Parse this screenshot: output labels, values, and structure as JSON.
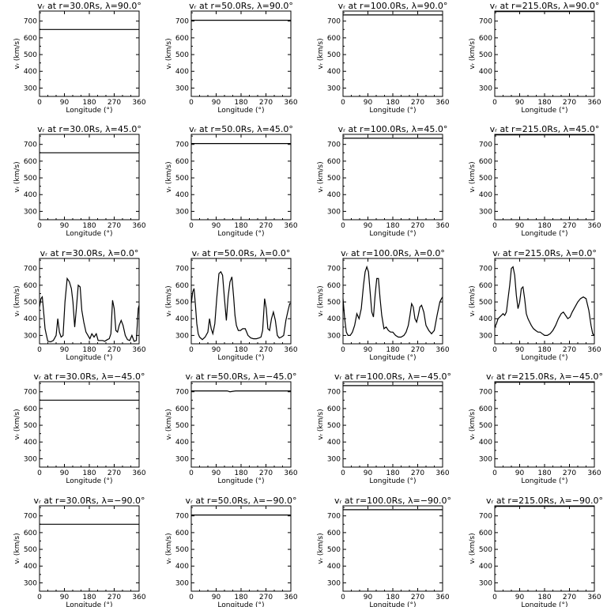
{
  "figure": {
    "background": "#ffffff",
    "line_color": "#000000"
  },
  "chart_data": [
    {
      "type": "line",
      "title": "vᵣ at r=30.0Rs, λ=90.0°",
      "xlabel": "Longitude (°)",
      "ylabel": "vᵣ (km/s)",
      "xlim": [
        0,
        360
      ],
      "ylim": [
        250,
        760
      ],
      "x_ticks": [
        "0",
        "90",
        "180",
        "270",
        "360"
      ],
      "y_ticks": [
        "300",
        "400",
        "500",
        "600",
        "700"
      ],
      "series": [
        {
          "x": [
            0,
            360
          ],
          "y": [
            650,
            650
          ]
        }
      ]
    },
    {
      "type": "line",
      "title": "vᵣ at r=50.0Rs, λ=90.0°",
      "xlabel": "Longitude (°)",
      "ylabel": "vᵣ (km/s)",
      "xlim": [
        0,
        360
      ],
      "ylim": [
        250,
        760
      ],
      "x_ticks": [
        "0",
        "90",
        "180",
        "270",
        "360"
      ],
      "y_ticks": [
        "300",
        "400",
        "500",
        "600",
        "700"
      ],
      "series": [
        {
          "x": [
            0,
            360
          ],
          "y": [
            705,
            705
          ]
        }
      ]
    },
    {
      "type": "line",
      "title": "vᵣ at r=100.0Rs, λ=90.0°",
      "xlabel": "Longitude (°)",
      "ylabel": "vᵣ (km/s)",
      "xlim": [
        0,
        360
      ],
      "ylim": [
        250,
        760
      ],
      "x_ticks": [
        "0",
        "90",
        "180",
        "270",
        "360"
      ],
      "y_ticks": [
        "300",
        "400",
        "500",
        "600",
        "700"
      ],
      "series": [
        {
          "x": [
            0,
            360
          ],
          "y": [
            737,
            737
          ]
        }
      ]
    },
    {
      "type": "line",
      "title": "vᵣ at r=215.0Rs, λ=90.0°",
      "xlabel": "Longitude (°)",
      "ylabel": "vᵣ (km/s)",
      "xlim": [
        0,
        360
      ],
      "ylim": [
        250,
        760
      ],
      "x_ticks": [
        "0",
        "90",
        "180",
        "270",
        "360"
      ],
      "y_ticks": [
        "300",
        "400",
        "500",
        "600",
        "700"
      ],
      "series": [
        {
          "x": [
            0,
            360
          ],
          "y": [
            757,
            757
          ]
        }
      ]
    },
    {
      "type": "line",
      "title": "vᵣ at r=30.0Rs, λ=45.0°",
      "xlabel": "Longitude (°)",
      "ylabel": "vᵣ (km/s)",
      "xlim": [
        0,
        360
      ],
      "ylim": [
        250,
        760
      ],
      "x_ticks": [
        "0",
        "90",
        "180",
        "270",
        "360"
      ],
      "y_ticks": [
        "300",
        "400",
        "500",
        "600",
        "700"
      ],
      "series": [
        {
          "x": [
            0,
            360
          ],
          "y": [
            650,
            650
          ]
        }
      ]
    },
    {
      "type": "line",
      "title": "vᵣ at r=50.0Rs, λ=45.0°",
      "xlabel": "Longitude (°)",
      "ylabel": "vᵣ (km/s)",
      "xlim": [
        0,
        360
      ],
      "ylim": [
        250,
        760
      ],
      "x_ticks": [
        "0",
        "90",
        "180",
        "270",
        "360"
      ],
      "y_ticks": [
        "300",
        "400",
        "500",
        "600",
        "700"
      ],
      "series": [
        {
          "x": [
            0,
            360
          ],
          "y": [
            705,
            705
          ]
        }
      ]
    },
    {
      "type": "line",
      "title": "vᵣ at r=100.0Rs, λ=45.0°",
      "xlabel": "Longitude (°)",
      "ylabel": "vᵣ (km/s)",
      "xlim": [
        0,
        360
      ],
      "ylim": [
        250,
        760
      ],
      "x_ticks": [
        "0",
        "90",
        "180",
        "270",
        "360"
      ],
      "y_ticks": [
        "300",
        "400",
        "500",
        "600",
        "700"
      ],
      "series": [
        {
          "x": [
            0,
            360
          ],
          "y": [
            737,
            737
          ]
        }
      ]
    },
    {
      "type": "line",
      "title": "vᵣ at r=215.0Rs, λ=45.0°",
      "xlabel": "Longitude (°)",
      "ylabel": "vᵣ (km/s)",
      "xlim": [
        0,
        360
      ],
      "ylim": [
        250,
        760
      ],
      "x_ticks": [
        "0",
        "90",
        "180",
        "270",
        "360"
      ],
      "y_ticks": [
        "300",
        "400",
        "500",
        "600",
        "700"
      ],
      "series": [
        {
          "x": [
            0,
            360
          ],
          "y": [
            757,
            757
          ]
        }
      ]
    },
    {
      "type": "line",
      "title": "vᵣ at r=30.0Rs, λ=0.0°",
      "xlabel": "Longitude (°)",
      "ylabel": "vᵣ (km/s)",
      "xlim": [
        0,
        360
      ],
      "ylim": [
        250,
        760
      ],
      "x_ticks": [
        "0",
        "90",
        "180",
        "270",
        "360"
      ],
      "y_ticks": [
        "300",
        "400",
        "500",
        "600",
        "700"
      ],
      "series": [
        {
          "x": [
            0,
            5,
            10,
            16,
            20,
            25,
            30,
            40,
            50,
            60,
            66,
            72,
            78,
            85,
            92,
            100,
            108,
            115,
            121,
            127,
            133,
            140,
            147,
            153,
            160,
            168,
            175,
            182,
            189,
            197,
            205,
            212,
            220,
            228,
            236,
            245,
            252,
            258,
            264,
            270,
            276,
            282,
            288,
            295,
            302,
            310,
            318,
            326,
            334,
            342,
            350,
            357,
            360
          ],
          "y": [
            470,
            520,
            530,
            420,
            340,
            300,
            265,
            262,
            270,
            300,
            400,
            320,
            290,
            300,
            500,
            640,
            620,
            580,
            500,
            350,
            460,
            600,
            590,
            450,
            380,
            320,
            300,
            280,
            310,
            290,
            310,
            270,
            270,
            270,
            265,
            275,
            280,
            310,
            510,
            460,
            330,
            320,
            360,
            390,
            360,
            300,
            275,
            270,
            300,
            265,
            270,
            460,
            480
          ]
        }
      ]
    },
    {
      "type": "line",
      "title": "vᵣ at r=50.0Rs, λ=0.0°",
      "xlabel": "Longitude (°)",
      "ylabel": "vᵣ (km/s)",
      "xlim": [
        0,
        360
      ],
      "ylim": [
        250,
        760
      ],
      "x_ticks": [
        "0",
        "90",
        "180",
        "270",
        "360"
      ],
      "y_ticks": [
        "300",
        "400",
        "500",
        "600",
        "700"
      ],
      "series": [
        {
          "x": [
            0,
            5,
            10,
            15,
            20,
            25,
            30,
            40,
            50,
            60,
            66,
            72,
            78,
            85,
            92,
            100,
            107,
            113,
            120,
            127,
            133,
            140,
            147,
            153,
            158,
            163,
            170,
            178,
            186,
            195,
            205,
            215,
            225,
            235,
            245,
            252,
            258,
            265,
            271,
            277,
            283,
            290,
            297,
            304,
            311,
            318,
            326,
            334,
            342,
            350,
            356,
            360
          ],
          "y": [
            490,
            560,
            580,
            480,
            370,
            310,
            290,
            275,
            290,
            320,
            400,
            340,
            310,
            370,
            520,
            670,
            680,
            660,
            520,
            390,
            530,
            620,
            650,
            530,
            420,
            360,
            330,
            330,
            340,
            340,
            300,
            285,
            280,
            280,
            285,
            290,
            330,
            520,
            460,
            340,
            330,
            400,
            440,
            390,
            300,
            285,
            290,
            300,
            390,
            450,
            490,
            490
          ]
        }
      ]
    },
    {
      "type": "line",
      "title": "vᵣ at r=100.0Rs, λ=0.0°",
      "xlabel": "Longitude (°)",
      "ylabel": "vᵣ (km/s)",
      "xlim": [
        0,
        360
      ],
      "ylim": [
        250,
        760
      ],
      "x_ticks": [
        "0",
        "90",
        "180",
        "270",
        "360"
      ],
      "y_ticks": [
        "300",
        "400",
        "500",
        "600",
        "700"
      ],
      "series": [
        {
          "x": [
            0,
            6,
            12,
            18,
            26,
            34,
            42,
            50,
            58,
            66,
            74,
            80,
            86,
            92,
            98,
            104,
            110,
            116,
            122,
            128,
            134,
            140,
            148,
            156,
            164,
            172,
            180,
            190,
            200,
            210,
            220,
            228,
            236,
            242,
            248,
            254,
            260,
            266,
            272,
            278,
            284,
            292,
            300,
            310,
            320,
            330,
            340,
            350,
            356,
            360
          ],
          "y": [
            520,
            400,
            320,
            300,
            300,
            320,
            360,
            430,
            400,
            460,
            600,
            680,
            710,
            680,
            560,
            440,
            410,
            540,
            640,
            640,
            520,
            420,
            340,
            350,
            330,
            320,
            320,
            300,
            290,
            290,
            300,
            320,
            360,
            420,
            490,
            470,
            400,
            380,
            420,
            470,
            480,
            440,
            360,
            330,
            310,
            330,
            420,
            500,
            520,
            530
          ]
        }
      ]
    },
    {
      "type": "line",
      "title": "vᵣ at r=215.0Rs, λ=0.0°",
      "xlabel": "Longitude (°)",
      "ylabel": "vᵣ (km/s)",
      "xlim": [
        0,
        360
      ],
      "ylim": [
        250,
        760
      ],
      "x_ticks": [
        "0",
        "90",
        "180",
        "270",
        "360"
      ],
      "y_ticks": [
        "300",
        "400",
        "500",
        "600",
        "700"
      ],
      "series": [
        {
          "x": [
            0,
            6,
            12,
            18,
            24,
            30,
            36,
            42,
            48,
            54,
            60,
            66,
            72,
            78,
            84,
            90,
            96,
            102,
            108,
            114,
            120,
            126,
            132,
            140,
            148,
            156,
            164,
            172,
            180,
            190,
            200,
            210,
            220,
            230,
            240,
            248,
            256,
            264,
            272,
            280,
            290,
            300,
            310,
            320,
            330,
            340,
            348,
            354,
            360
          ],
          "y": [
            350,
            370,
            400,
            410,
            420,
            430,
            420,
            440,
            520,
            600,
            700,
            710,
            660,
            540,
            460,
            500,
            580,
            590,
            520,
            430,
            400,
            380,
            360,
            340,
            330,
            320,
            320,
            310,
            300,
            300,
            310,
            330,
            360,
            400,
            430,
            440,
            420,
            400,
            410,
            440,
            470,
            500,
            520,
            530,
            520,
            450,
            360,
            310,
            300
          ]
        }
      ]
    },
    {
      "type": "line",
      "title": "vᵣ at r=30.0Rs, λ=−45.0°",
      "xlabel": "Longitude (°)",
      "ylabel": "vᵣ (km/s)",
      "xlim": [
        0,
        360
      ],
      "ylim": [
        250,
        760
      ],
      "x_ticks": [
        "0",
        "90",
        "180",
        "270",
        "360"
      ],
      "y_ticks": [
        "300",
        "400",
        "500",
        "600",
        "700"
      ],
      "series": [
        {
          "x": [
            0,
            360
          ],
          "y": [
            650,
            650
          ]
        }
      ]
    },
    {
      "type": "line",
      "title": "vᵣ at r=50.0Rs, λ=−45.0°",
      "xlabel": "Longitude (°)",
      "ylabel": "vᵣ (km/s)",
      "xlim": [
        0,
        360
      ],
      "ylim": [
        250,
        760
      ],
      "x_ticks": [
        "0",
        "90",
        "180",
        "270",
        "360"
      ],
      "y_ticks": [
        "300",
        "400",
        "500",
        "600",
        "700"
      ],
      "series": [
        {
          "x": [
            0,
            130,
            140,
            150,
            160,
            360
          ],
          "y": [
            705,
            705,
            700,
            703,
            705,
            705
          ]
        }
      ]
    },
    {
      "type": "line",
      "title": "vᵣ at r=100.0Rs, λ=−45.0°",
      "xlabel": "Longitude (°)",
      "ylabel": "vᵣ (km/s)",
      "xlim": [
        0,
        360
      ],
      "ylim": [
        250,
        760
      ],
      "x_ticks": [
        "0",
        "90",
        "180",
        "270",
        "360"
      ],
      "y_ticks": [
        "300",
        "400",
        "500",
        "600",
        "700"
      ],
      "series": [
        {
          "x": [
            0,
            360
          ],
          "y": [
            737,
            737
          ]
        }
      ]
    },
    {
      "type": "line",
      "title": "vᵣ at r=215.0Rs, λ=−45.0°",
      "xlabel": "Longitude (°)",
      "ylabel": "vᵣ (km/s)",
      "xlim": [
        0,
        360
      ],
      "ylim": [
        250,
        760
      ],
      "x_ticks": [
        "0",
        "90",
        "180",
        "270",
        "360"
      ],
      "y_ticks": [
        "300",
        "400",
        "500",
        "600",
        "700"
      ],
      "series": [
        {
          "x": [
            0,
            360
          ],
          "y": [
            757,
            757
          ]
        }
      ]
    },
    {
      "type": "line",
      "title": "vᵣ at r=30.0Rs, λ=−90.0°",
      "xlabel": "Longitude (°)",
      "ylabel": "vᵣ (km/s)",
      "xlim": [
        0,
        360
      ],
      "ylim": [
        250,
        760
      ],
      "x_ticks": [
        "0",
        "90",
        "180",
        "270",
        "360"
      ],
      "y_ticks": [
        "300",
        "400",
        "500",
        "600",
        "700"
      ],
      "series": [
        {
          "x": [
            0,
            360
          ],
          "y": [
            650,
            650
          ]
        }
      ]
    },
    {
      "type": "line",
      "title": "vᵣ at r=50.0Rs, λ=−90.0°",
      "xlabel": "Longitude (°)",
      "ylabel": "vᵣ (km/s)",
      "xlim": [
        0,
        360
      ],
      "ylim": [
        250,
        760
      ],
      "x_ticks": [
        "0",
        "90",
        "180",
        "270",
        "360"
      ],
      "y_ticks": [
        "300",
        "400",
        "500",
        "600",
        "700"
      ],
      "series": [
        {
          "x": [
            0,
            360
          ],
          "y": [
            705,
            705
          ]
        }
      ]
    },
    {
      "type": "line",
      "title": "vᵣ at r=100.0Rs, λ=−90.0°",
      "xlabel": "Longitude (°)",
      "ylabel": "vᵣ (km/s)",
      "xlim": [
        0,
        360
      ],
      "ylim": [
        250,
        760
      ],
      "x_ticks": [
        "0",
        "90",
        "180",
        "270",
        "360"
      ],
      "y_ticks": [
        "300",
        "400",
        "500",
        "600",
        "700"
      ],
      "series": [
        {
          "x": [
            0,
            360
          ],
          "y": [
            737,
            737
          ]
        }
      ]
    },
    {
      "type": "line",
      "title": "vᵣ at r=215.0Rs, λ=−90.0°",
      "xlabel": "Longitude (°)",
      "ylabel": "vᵣ (km/s)",
      "xlim": [
        0,
        360
      ],
      "ylim": [
        250,
        760
      ],
      "x_ticks": [
        "0",
        "90",
        "180",
        "270",
        "360"
      ],
      "y_ticks": [
        "300",
        "400",
        "500",
        "600",
        "700"
      ],
      "series": [
        {
          "x": [
            0,
            360
          ],
          "y": [
            757,
            757
          ]
        }
      ]
    }
  ]
}
